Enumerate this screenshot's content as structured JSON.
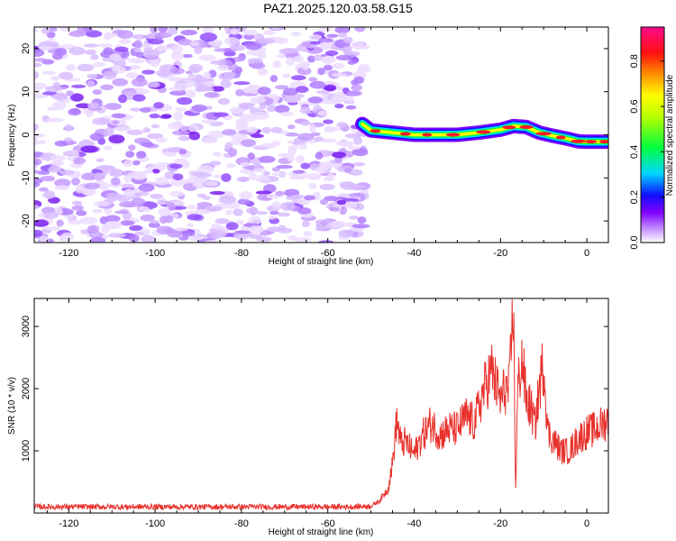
{
  "title": "PAZ1.2025.120.03.58.G15",
  "chart_data": [
    {
      "type": "heatmap",
      "name": "spectrogram",
      "xlabel": "Height of straight line (km)",
      "ylabel": "Frequency (Hz)",
      "xlim": [
        -128,
        5
      ],
      "ylim": [
        -25,
        25
      ],
      "x_ticks": [
        -120,
        -100,
        -80,
        -60,
        -40,
        -20,
        0
      ],
      "y_ticks": [
        -20,
        -10,
        0,
        10,
        20
      ],
      "noise_region_x": [
        -128,
        -52
      ],
      "signal_ridge": {
        "x": [
          -52,
          -50,
          -45,
          -40,
          -35,
          -30,
          -25,
          -20,
          -17,
          -14,
          -11,
          -8,
          -5,
          -2,
          0,
          5
        ],
        "frequency": [
          2.5,
          1.0,
          0.5,
          0.0,
          0.0,
          0.0,
          0.5,
          1.2,
          2.0,
          1.8,
          0.5,
          -0.2,
          -0.8,
          -1.5,
          -1.6,
          -1.6
        ]
      },
      "colorbar": {
        "label": "Normalized spectral amplitude",
        "range": [
          0.0,
          0.95
        ],
        "ticks": [
          0.0,
          0.2,
          0.4,
          0.6,
          0.8
        ]
      }
    },
    {
      "type": "line",
      "name": "snr",
      "xlabel": "Height of straight line (km)",
      "ylabel": "SNR (10 * v/v)",
      "xlim": [
        -128,
        5
      ],
      "ylim": [
        0,
        3450
      ],
      "x_ticks": [
        -120,
        -100,
        -80,
        -60,
        -40,
        -20,
        0
      ],
      "y_ticks": [
        1000,
        2000,
        3000
      ],
      "series": [
        {
          "color": "#e8322d",
          "x": [
            -128,
            -110,
            -90,
            -70,
            -55,
            -50,
            -48,
            -46,
            -45,
            -44,
            -43,
            -42,
            -40,
            -38,
            -36,
            -34,
            -32,
            -30,
            -28,
            -26,
            -24,
            -22,
            -20,
            -19,
            -18,
            -17,
            -16.5,
            -16,
            -15,
            -14,
            -13,
            -12,
            -11,
            -10,
            -9,
            -8,
            -6,
            -4,
            -2,
            0,
            2,
            5
          ],
          "values": [
            100,
            100,
            100,
            100,
            100,
            110,
            200,
            400,
            800,
            1500,
            1100,
            1150,
            950,
            1250,
            1450,
            1250,
            1350,
            1350,
            1550,
            1450,
            1950,
            2300,
            1800,
            2000,
            1950,
            3400,
            350,
            2000,
            2500,
            1800,
            1700,
            1400,
            2000,
            2450,
            1300,
            1200,
            1000,
            1000,
            1200,
            1300,
            1350,
            1500
          ]
        }
      ]
    }
  ]
}
